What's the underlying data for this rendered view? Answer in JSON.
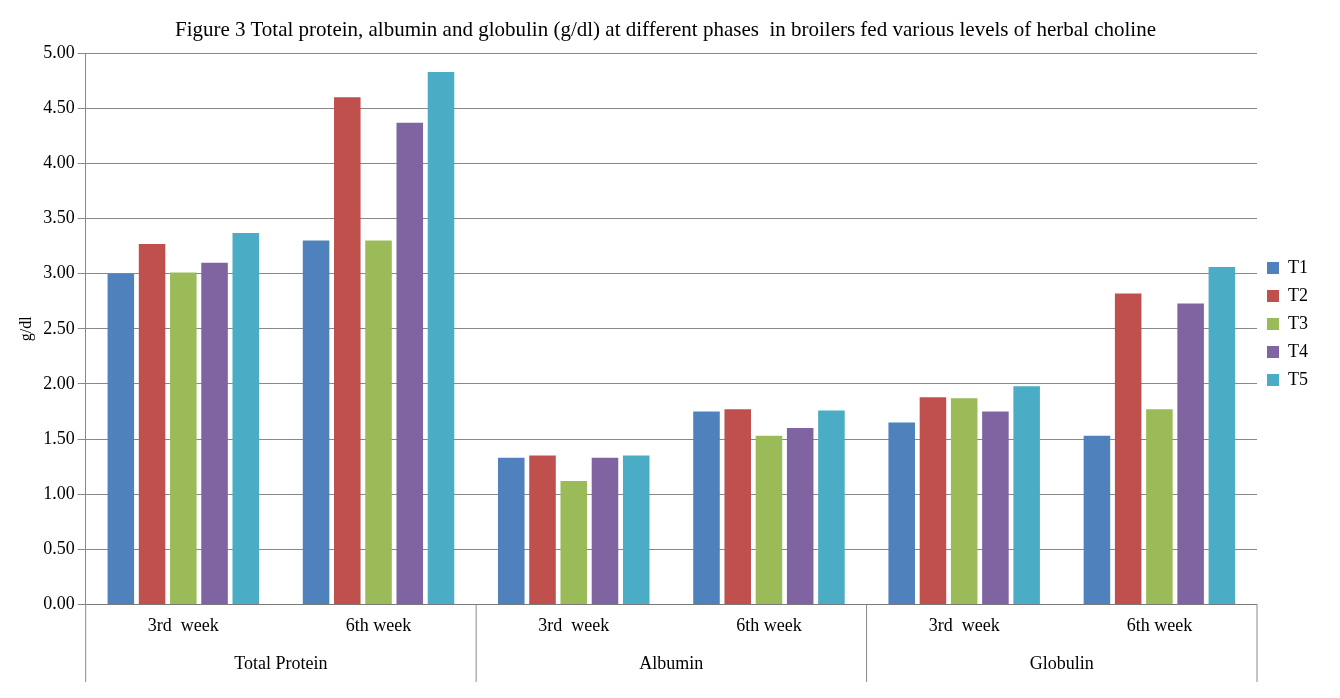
{
  "chart_data": {
    "type": "bar",
    "title": "Figure 3 Total protein, albumin and globulin (g/dl) at different phases  in broilers fed various levels of herbal choline",
    "ylabel": "g/dl",
    "categories": [
      "3rd  week",
      "6th week",
      "3rd  week",
      "6th week",
      "3rd  week",
      "6th week"
    ],
    "annotations": [
      "Total Protein",
      "Albumin",
      "Globulin"
    ],
    "series": [
      {
        "name": "T1",
        "color": "#4f81bd",
        "values": [
          3.0,
          3.3,
          1.33,
          1.75,
          1.65,
          1.53
        ]
      },
      {
        "name": "T2",
        "color": "#c0504d",
        "values": [
          3.27,
          4.6,
          1.35,
          1.77,
          1.88,
          2.82
        ]
      },
      {
        "name": "T3",
        "color": "#9bbb59",
        "values": [
          3.01,
          3.3,
          1.12,
          1.53,
          1.87,
          1.77
        ]
      },
      {
        "name": "T4",
        "color": "#8064a2",
        "values": [
          3.1,
          4.37,
          1.33,
          1.6,
          1.75,
          2.73
        ]
      },
      {
        "name": "T5",
        "color": "#4bacc6",
        "values": [
          3.37,
          4.83,
          1.35,
          1.76,
          1.98,
          3.06
        ]
      }
    ],
    "ylim": [
      0,
      5
    ],
    "yticks": [
      {
        "value": 0,
        "label": "0.00"
      },
      {
        "value": 0.5,
        "label": "0.50"
      },
      {
        "value": 1,
        "label": "1.00"
      },
      {
        "value": 1.5,
        "label": "1.50"
      },
      {
        "value": 2,
        "label": "2.00"
      },
      {
        "value": 2.5,
        "label": "2.50"
      },
      {
        "value": 3,
        "label": "3.00"
      },
      {
        "value": 3.5,
        "label": "3.50"
      },
      {
        "value": 4,
        "label": "4.00"
      },
      {
        "value": 4.5,
        "label": "4.50"
      },
      {
        "value": 5,
        "label": "5.00"
      }
    ],
    "grid": "y",
    "legend": "right"
  }
}
